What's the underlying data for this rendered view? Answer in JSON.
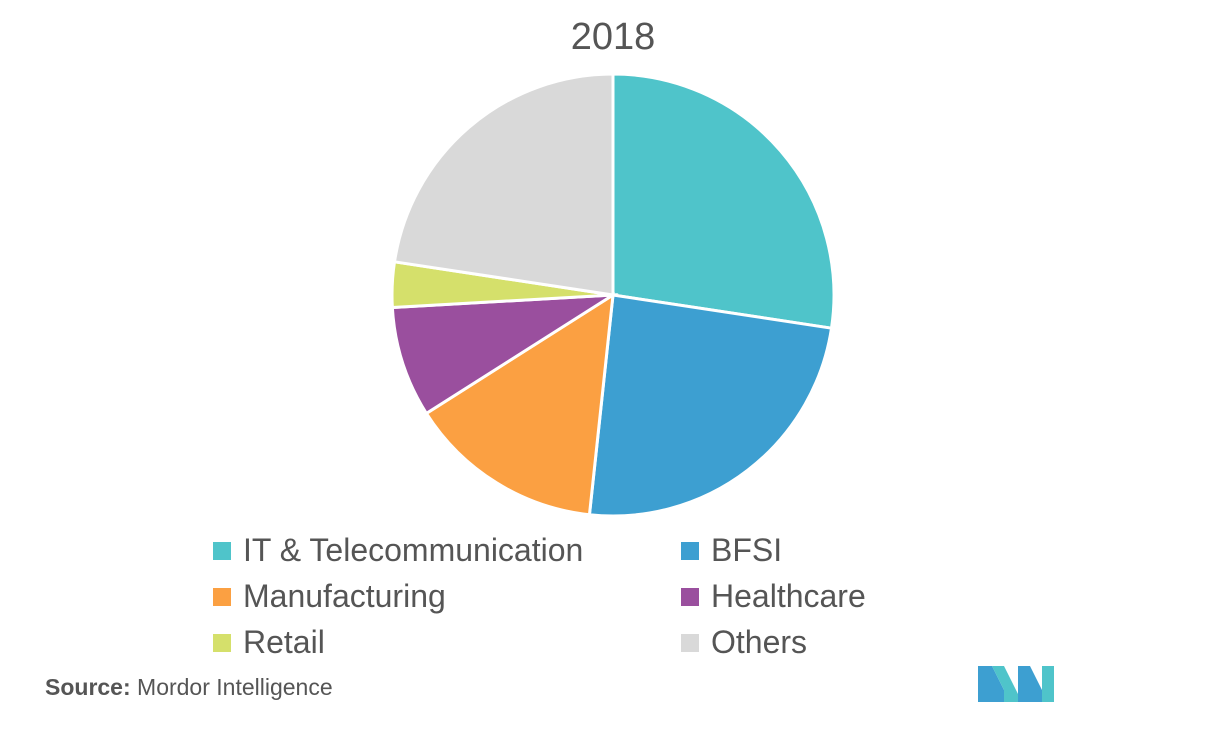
{
  "chart_data": {
    "type": "pie",
    "title": "2018",
    "categories": [
      "IT & Telecommunication",
      "BFSI",
      "Manufacturing",
      "Healthcare",
      "Retail",
      "Others"
    ],
    "values": [
      27.4,
      24.3,
      14.3,
      8.1,
      3.3,
      22.6
    ],
    "colors": [
      "#4FC4CA",
      "#3D9FD1",
      "#FBA042",
      "#9A4F9E",
      "#D5E06B",
      "#D9D9D9"
    ],
    "legend_position": "bottom"
  },
  "source": {
    "label": "Source:",
    "text": "Mordor Intelligence"
  },
  "logo_text": "MI"
}
